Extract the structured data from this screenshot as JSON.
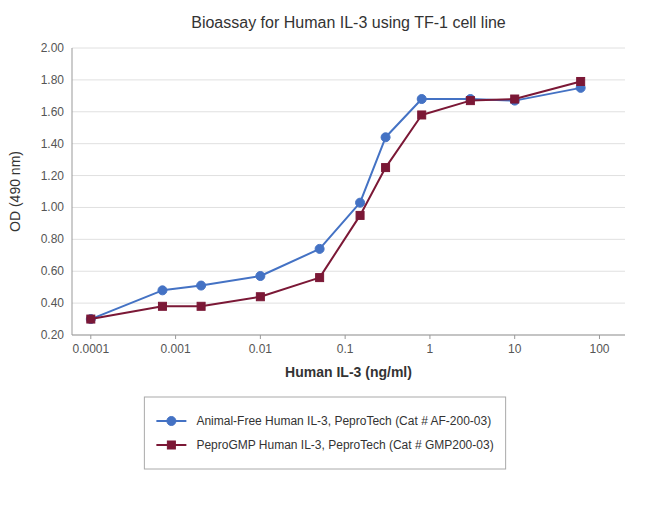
{
  "chart_data": {
    "type": "line",
    "title": "Bioassay for Human IL-3 using TF-1 cell line",
    "x_label": "Human IL-3 (ng/ml)",
    "y_label": "OD (490 nm)",
    "log": "x",
    "grid": true,
    "legend": "bottom",
    "x": [
      0.0001,
      0.0007,
      0.002,
      0.01,
      0.05,
      0.15,
      0.3,
      0.8,
      3,
      10,
      60
    ],
    "xlim": [
      6e-05,
      200
    ],
    "xticks": [
      0.0001,
      0.001,
      0.01,
      0.1,
      1,
      10,
      100
    ],
    "ylim": [
      0.2,
      2.0
    ],
    "yticks": [
      {
        "value": 0.2,
        "label": "0.20"
      },
      {
        "value": 0.4,
        "label": "0.40"
      },
      {
        "value": 0.6,
        "label": "0.60"
      },
      {
        "value": 0.8,
        "label": "0.80"
      },
      {
        "value": 1.0,
        "label": "1.00"
      },
      {
        "value": 1.2,
        "label": "1.20"
      },
      {
        "value": 1.4,
        "label": "1.40"
      },
      {
        "value": 1.6,
        "label": "1.60"
      },
      {
        "value": 1.8,
        "label": "1.80"
      },
      {
        "value": 2.0,
        "label": "2.00"
      }
    ],
    "series": [
      {
        "name": "Animal-Free Human IL-3, PeproTech (Cat # AF-200-03)",
        "color": "#4472C4",
        "marker": "circle",
        "values": [
          0.3,
          0.48,
          0.51,
          0.57,
          0.74,
          1.03,
          1.44,
          1.68,
          1.68,
          1.67,
          1.75
        ]
      },
      {
        "name": "PeproGMP Human IL-3, PeproTech (Cat # GMP200-03)",
        "color": "#7B1836",
        "marker": "square",
        "values": [
          0.3,
          0.38,
          0.38,
          0.44,
          0.56,
          0.95,
          1.25,
          1.58,
          1.67,
          1.68,
          1.79
        ]
      }
    ]
  }
}
